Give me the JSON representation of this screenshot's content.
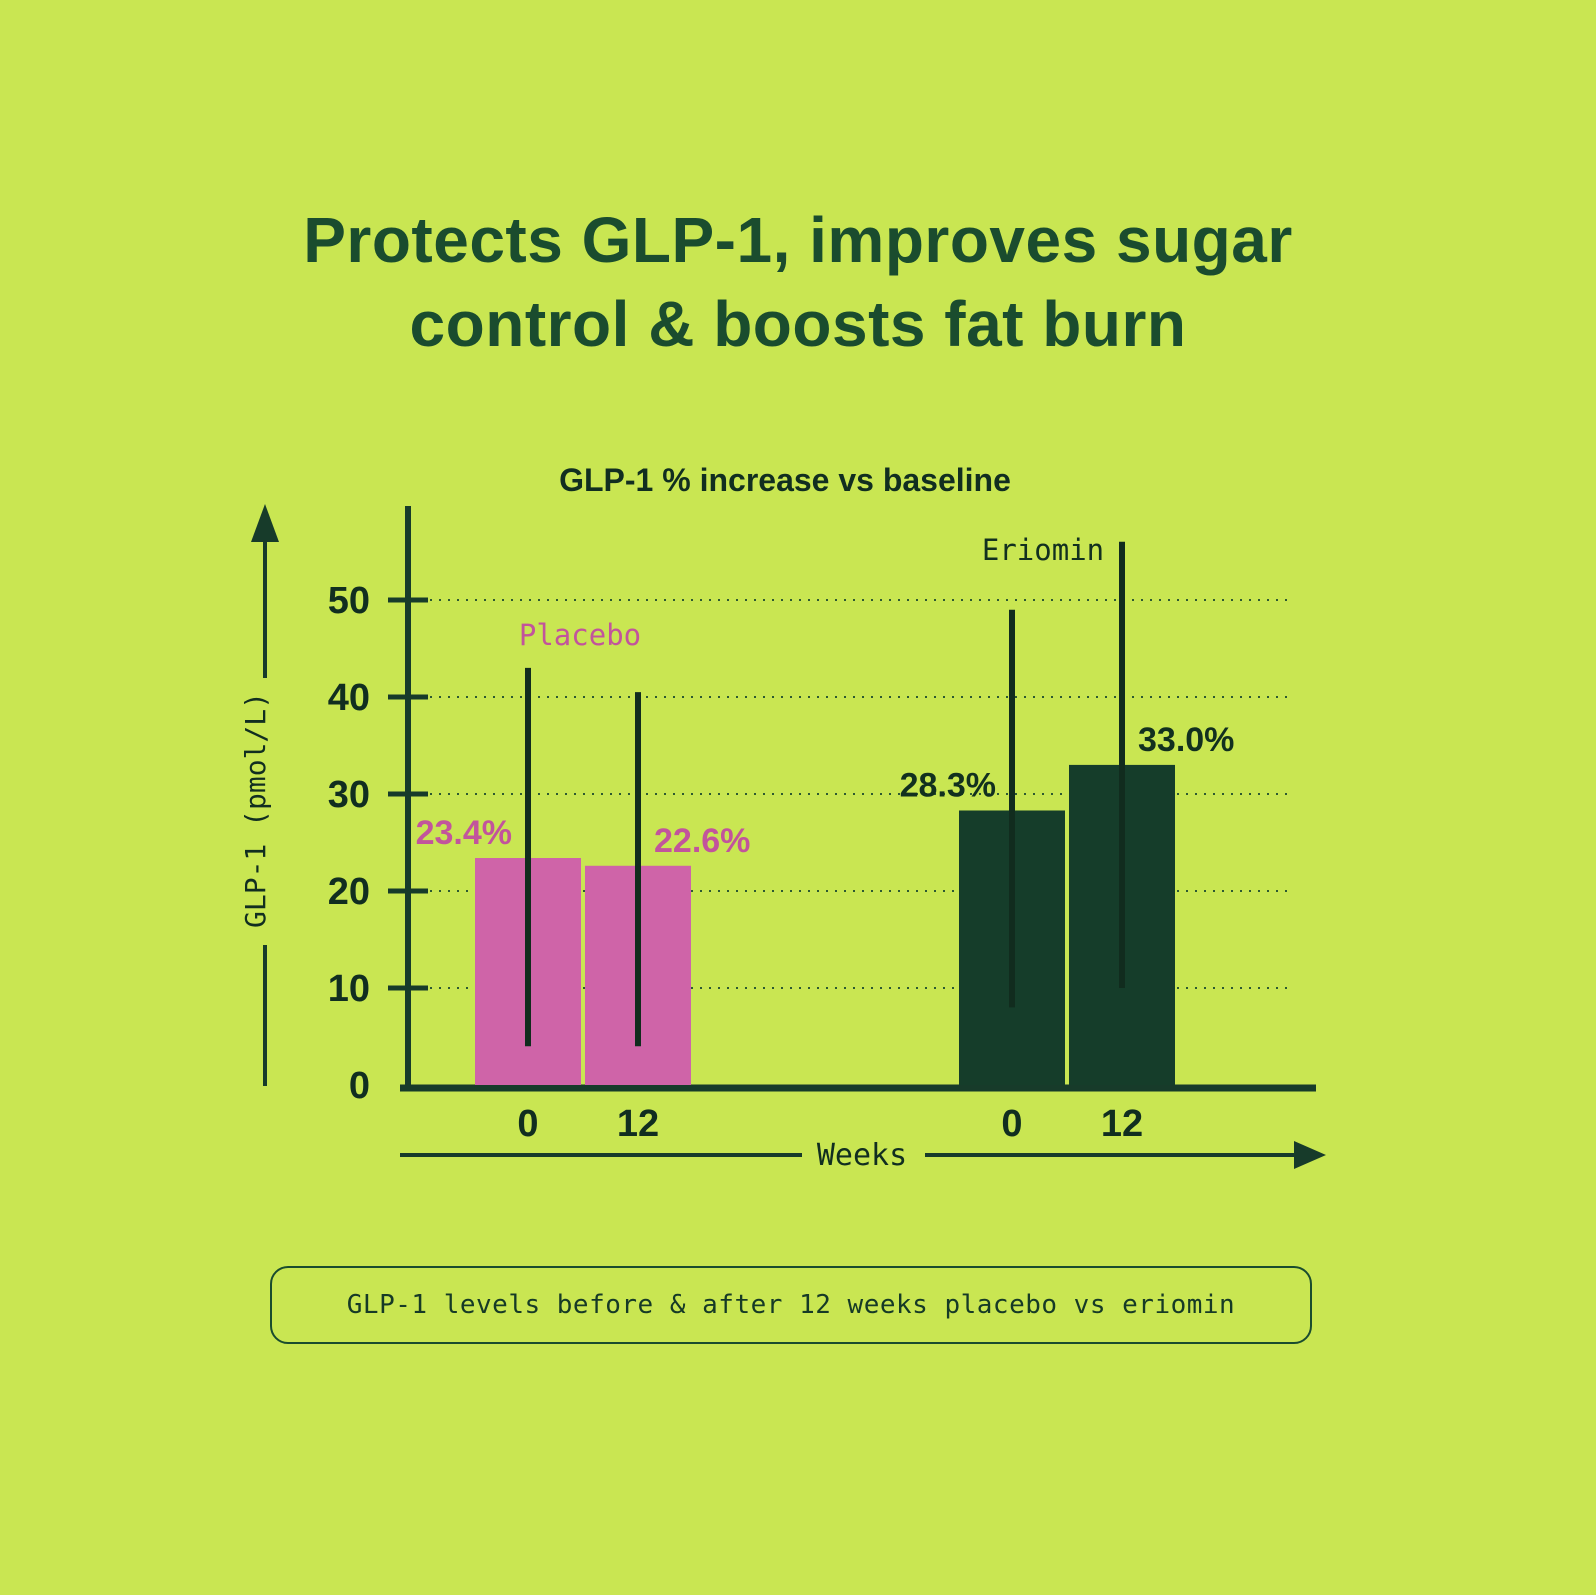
{
  "page": {
    "title": "Protects GLP-1, improves sugar control & boosts fat burn",
    "caption": "GLP-1 levels before & after 12 weeks placebo vs eriomin"
  },
  "colors": {
    "background": "#c9e652",
    "title": "#1a4c2e",
    "axis": "#173b2a",
    "text_dark": "#112e20",
    "grid": "#1d4a2e",
    "error_bar": "#112c1e",
    "pink": "#cf64a8",
    "dark_green_bar": "#153d2a"
  },
  "chart_data": {
    "type": "bar",
    "title": "GLP-1 % increase vs baseline",
    "xlabel": "Weeks",
    "ylabel": "GLP-1 (pmol/L)",
    "ylim": [
      0,
      58
    ],
    "yticks": [
      0,
      10,
      20,
      30,
      40,
      50
    ],
    "grid": "horizontal-dotted",
    "categories": [
      "0",
      "12",
      "0",
      "12"
    ],
    "legend_position": "labels-above-groups",
    "series": [
      {
        "name": "Placebo",
        "color": "#cf64a8",
        "label_color": "#c2549c",
        "points": [
          {
            "week": "0",
            "value": 23.4,
            "label": "23.4%",
            "err_low": 4,
            "err_high": 43
          },
          {
            "week": "12",
            "value": 22.6,
            "label": "22.6%",
            "err_low": 4,
            "err_high": 40.5
          }
        ]
      },
      {
        "name": "Eriomin",
        "color": "#153d2a",
        "label_color": "#12301f",
        "points": [
          {
            "week": "0",
            "value": 28.3,
            "label": "28.3%",
            "err_low": 8,
            "err_high": 49
          },
          {
            "week": "12",
            "value": 33.0,
            "label": "33.0%",
            "err_low": 10,
            "err_high": 56
          }
        ]
      }
    ]
  }
}
